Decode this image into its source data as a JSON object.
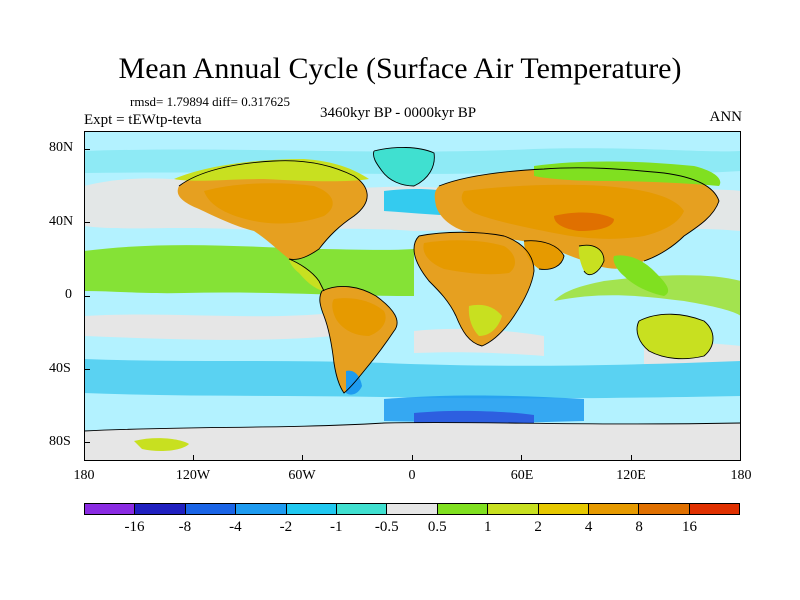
{
  "title": "Mean Annual Cycle (Surface Air Temperature)",
  "stats_text": "rmsd= 1.79894 diff= 0.317625",
  "experiment": "Expt = tEWtp-tevta",
  "period": "3460kyr BP - 0000kyr BP",
  "season": "ANN",
  "map": {
    "projection": "cylindrical-equidistant",
    "lon_range": [
      -180,
      180
    ],
    "lat_range": [
      -90,
      90
    ],
    "ocean_background_color": "#b3f2ff",
    "lat_tick_labels": [
      "80N",
      "40N",
      "0",
      "40S",
      "80S"
    ],
    "lon_tick_labels": [
      "180",
      "120W",
      "60W",
      "0",
      "60E",
      "120E",
      "180"
    ]
  },
  "colorbar": {
    "colors": [
      "#8a2be2",
      "#2020c0",
      "#1a64e6",
      "#1e9bf0",
      "#20c8f0",
      "#40e0d0",
      "#e6e6e6",
      "#80e020",
      "#c8e020",
      "#e6c800",
      "#e69a00",
      "#e07000",
      "#e03000"
    ],
    "labels": [
      "-16",
      "-8",
      "-4",
      "-2",
      "-1",
      "-0.5",
      "0.5",
      "1",
      "2",
      "4",
      "8",
      "16"
    ],
    "boundaries": [
      -16,
      -8,
      -4,
      -2,
      -1,
      -0.5,
      0.5,
      1,
      2,
      4,
      8,
      16
    ]
  }
}
